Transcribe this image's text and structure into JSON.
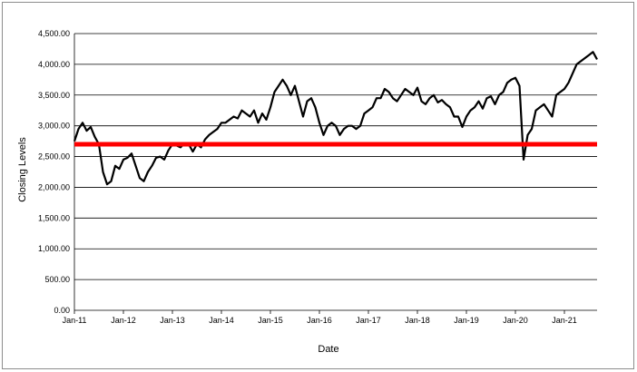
{
  "chart_data": {
    "type": "line",
    "xlabel": "Date",
    "ylabel": "Closing Levels",
    "ylim": [
      0,
      4500
    ],
    "xlim": [
      "2011-01",
      "2021-09"
    ],
    "y_ticks": [
      0,
      500,
      1000,
      1500,
      2000,
      2500,
      3000,
      3500,
      4000,
      4500
    ],
    "y_tick_labels": [
      "0.00",
      "500.00",
      "1,000.00",
      "1,500.00",
      "2,000.00",
      "2,500.00",
      "3,000.00",
      "3,500.00",
      "4,000.00",
      "4,500.00"
    ],
    "x_tick_labels": [
      "Jan-11",
      "Jan-12",
      "Jan-13",
      "Jan-14",
      "Jan-15",
      "Jan-16",
      "Jan-17",
      "Jan-18",
      "Jan-19",
      "Jan-20",
      "Jan-21"
    ],
    "grid": {
      "horizontal": true,
      "vertical": false
    },
    "legend": "none",
    "series": [
      {
        "color": "#000000",
        "points": [
          [
            "2011-01",
            2750
          ],
          [
            "2011-02",
            2950
          ],
          [
            "2011-03",
            3050
          ],
          [
            "2011-04",
            2920
          ],
          [
            "2011-05",
            2980
          ],
          [
            "2011-06",
            2820
          ],
          [
            "2011-07",
            2700
          ],
          [
            "2011-08",
            2250
          ],
          [
            "2011-09",
            2050
          ],
          [
            "2011-10",
            2100
          ],
          [
            "2011-11",
            2350
          ],
          [
            "2011-12",
            2300
          ],
          [
            "2012-01",
            2450
          ],
          [
            "2012-02",
            2480
          ],
          [
            "2012-03",
            2550
          ],
          [
            "2012-04",
            2350
          ],
          [
            "2012-05",
            2150
          ],
          [
            "2012-06",
            2100
          ],
          [
            "2012-07",
            2250
          ],
          [
            "2012-08",
            2350
          ],
          [
            "2012-09",
            2480
          ],
          [
            "2012-10",
            2500
          ],
          [
            "2012-11",
            2450
          ],
          [
            "2012-12",
            2600
          ],
          [
            "2013-01",
            2700
          ],
          [
            "2013-02",
            2680
          ],
          [
            "2013-03",
            2650
          ],
          [
            "2013-04",
            2720
          ],
          [
            "2013-05",
            2700
          ],
          [
            "2013-06",
            2580
          ],
          [
            "2013-07",
            2700
          ],
          [
            "2013-08",
            2650
          ],
          [
            "2013-09",
            2780
          ],
          [
            "2013-10",
            2850
          ],
          [
            "2013-11",
            2900
          ],
          [
            "2013-12",
            2950
          ],
          [
            "2014-01",
            3050
          ],
          [
            "2014-02",
            3050
          ],
          [
            "2014-03",
            3100
          ],
          [
            "2014-04",
            3150
          ],
          [
            "2014-05",
            3120
          ],
          [
            "2014-06",
            3250
          ],
          [
            "2014-07",
            3200
          ],
          [
            "2014-08",
            3150
          ],
          [
            "2014-09",
            3250
          ],
          [
            "2014-10",
            3050
          ],
          [
            "2014-11",
            3200
          ],
          [
            "2014-12",
            3100
          ],
          [
            "2015-01",
            3300
          ],
          [
            "2015-02",
            3550
          ],
          [
            "2015-03",
            3650
          ],
          [
            "2015-04",
            3750
          ],
          [
            "2015-05",
            3650
          ],
          [
            "2015-06",
            3500
          ],
          [
            "2015-07",
            3650
          ],
          [
            "2015-08",
            3400
          ],
          [
            "2015-09",
            3150
          ],
          [
            "2015-10",
            3400
          ],
          [
            "2015-11",
            3450
          ],
          [
            "2015-12",
            3300
          ],
          [
            "2016-01",
            3050
          ],
          [
            "2016-02",
            2850
          ],
          [
            "2016-03",
            3000
          ],
          [
            "2016-04",
            3050
          ],
          [
            "2016-05",
            3000
          ],
          [
            "2016-06",
            2850
          ],
          [
            "2016-07",
            2950
          ],
          [
            "2016-08",
            3000
          ],
          [
            "2016-09",
            3000
          ],
          [
            "2016-10",
            2950
          ],
          [
            "2016-11",
            3000
          ],
          [
            "2016-12",
            3200
          ],
          [
            "2017-01",
            3250
          ],
          [
            "2017-02",
            3300
          ],
          [
            "2017-03",
            3450
          ],
          [
            "2017-04",
            3450
          ],
          [
            "2017-05",
            3600
          ],
          [
            "2017-06",
            3550
          ],
          [
            "2017-07",
            3450
          ],
          [
            "2017-08",
            3400
          ],
          [
            "2017-09",
            3500
          ],
          [
            "2017-10",
            3600
          ],
          [
            "2017-11",
            3550
          ],
          [
            "2017-12",
            3500
          ],
          [
            "2018-01",
            3620
          ],
          [
            "2018-02",
            3400
          ],
          [
            "2018-03",
            3350
          ],
          [
            "2018-04",
            3450
          ],
          [
            "2018-05",
            3500
          ],
          [
            "2018-06",
            3380
          ],
          [
            "2018-07",
            3420
          ],
          [
            "2018-08",
            3350
          ],
          [
            "2018-09",
            3300
          ],
          [
            "2018-10",
            3150
          ],
          [
            "2018-11",
            3150
          ],
          [
            "2018-12",
            2980
          ],
          [
            "2019-01",
            3150
          ],
          [
            "2019-02",
            3250
          ],
          [
            "2019-03",
            3300
          ],
          [
            "2019-04",
            3400
          ],
          [
            "2019-05",
            3280
          ],
          [
            "2019-06",
            3450
          ],
          [
            "2019-07",
            3480
          ],
          [
            "2019-08",
            3350
          ],
          [
            "2019-09",
            3500
          ],
          [
            "2019-10",
            3550
          ],
          [
            "2019-11",
            3700
          ],
          [
            "2019-12",
            3750
          ],
          [
            "2020-01",
            3780
          ],
          [
            "2020-02",
            3650
          ],
          [
            "2020-03",
            2450
          ],
          [
            "2020-04",
            2850
          ],
          [
            "2020-05",
            2950
          ],
          [
            "2020-06",
            3250
          ],
          [
            "2020-07",
            3300
          ],
          [
            "2020-08",
            3350
          ],
          [
            "2020-09",
            3250
          ],
          [
            "2020-10",
            3150
          ],
          [
            "2020-11",
            3500
          ],
          [
            "2020-12",
            3550
          ],
          [
            "2021-01",
            3600
          ],
          [
            "2021-02",
            3700
          ],
          [
            "2021-03",
            3850
          ],
          [
            "2021-04",
            4000
          ],
          [
            "2021-05",
            4050
          ],
          [
            "2021-06",
            4100
          ],
          [
            "2021-07",
            4150
          ],
          [
            "2021-08",
            4200
          ],
          [
            "2021-09",
            4080
          ]
        ]
      }
    ],
    "reference_lines": [
      {
        "y": 2700,
        "color": "#ff0000"
      }
    ]
  }
}
